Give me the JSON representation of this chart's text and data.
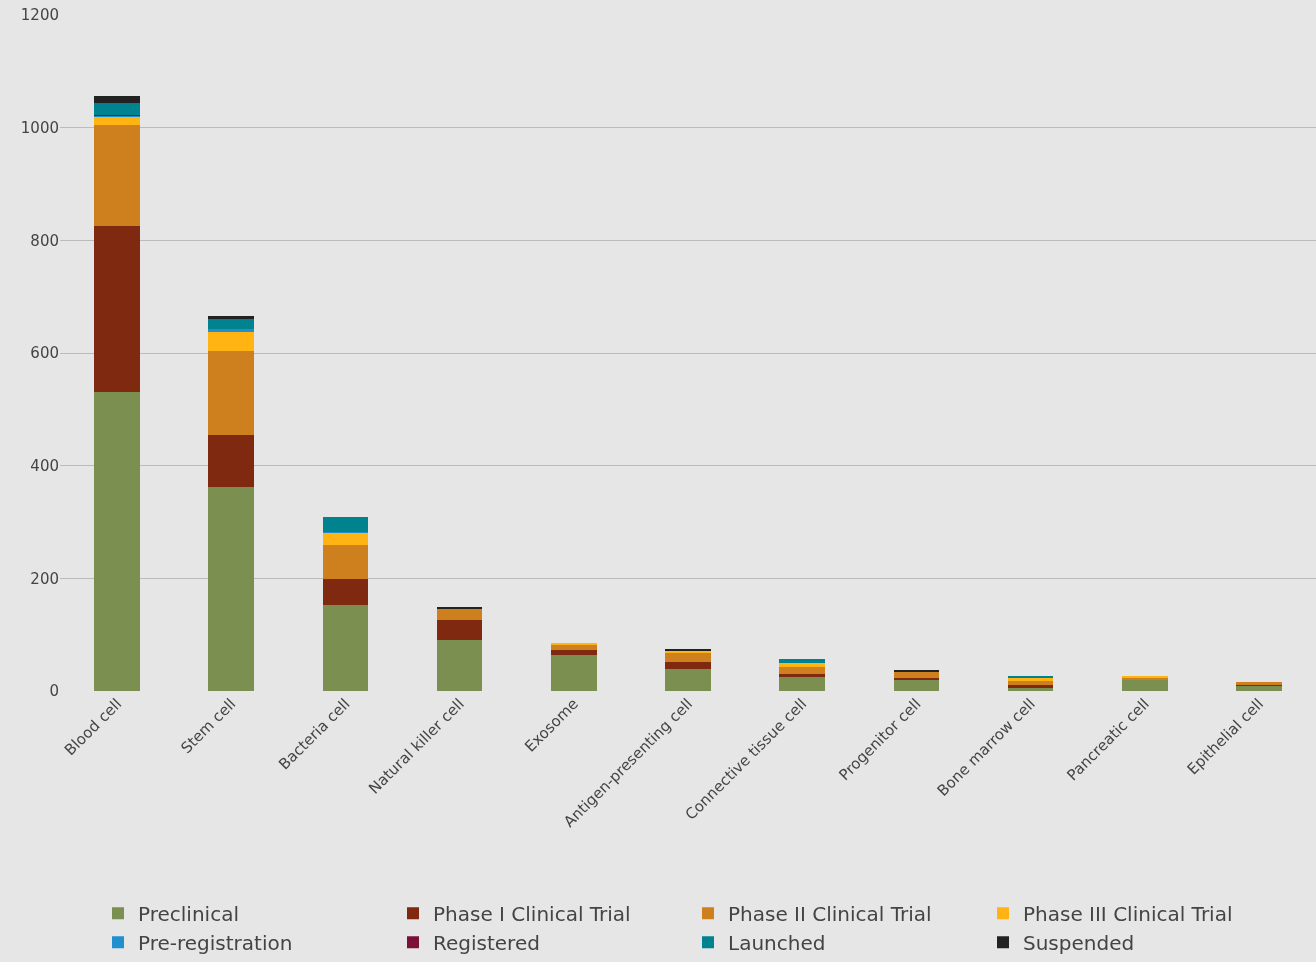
{
  "chart_data": {
    "type": "bar",
    "stacked": true,
    "categories": [
      "Blood cell",
      "Stem cell",
      "Bacteria cell",
      "Natural killer cell",
      "Exosome",
      "Antigen-presenting cell",
      "Connective tissue cell",
      "Progenitor cell",
      "Bone marrow cell",
      "Pancreatic cell",
      "Epithelial cell"
    ],
    "series": [
      {
        "name": "Preclinical",
        "color": "#7a8f50",
        "values": [
          530,
          362,
          153,
          91,
          64,
          39,
          25,
          20,
          7,
          21,
          10
        ]
      },
      {
        "name": "Phase I Clinical Trial",
        "color": "#7f2910",
        "values": [
          296,
          93,
          46,
          35,
          8,
          13,
          6,
          3,
          3,
          0,
          1
        ]
      },
      {
        "name": "Phase II Clinical Trial",
        "color": "#cf801e",
        "values": [
          179,
          148,
          60,
          20,
          10,
          16,
          12,
          12,
          8,
          3,
          5
        ]
      },
      {
        "name": "Phase III Clinical Trial",
        "color": "#ffb414",
        "values": [
          14,
          35,
          22,
          0,
          2,
          3,
          6,
          null,
          6,
          1,
          0
        ]
      },
      {
        "name": "Pre-registration",
        "color": "#1f8fd0",
        "values": [
          3,
          5,
          1,
          0,
          0,
          0,
          0,
          0,
          0,
          0,
          0
        ]
      },
      {
        "name": "Registered",
        "color": "#7d1038",
        "values": [
          1,
          0,
          0,
          0,
          0,
          0,
          0,
          0,
          0,
          0,
          0
        ]
      },
      {
        "name": "Launched",
        "color": "#00838f",
        "values": [
          21,
          18,
          27,
          0,
          0,
          0,
          7,
          0,
          2,
          0,
          0
        ]
      },
      {
        "name": "Suspended",
        "color": "#222222",
        "values": [
          12,
          4,
          0,
          2,
          0,
          4,
          0,
          3,
          0,
          0,
          0
        ]
      }
    ],
    "ylim": [
      0,
      1200
    ],
    "yticks": [
      0,
      200,
      400,
      600,
      800,
      1000,
      1200
    ],
    "grid": "y",
    "legend": "bottom"
  }
}
